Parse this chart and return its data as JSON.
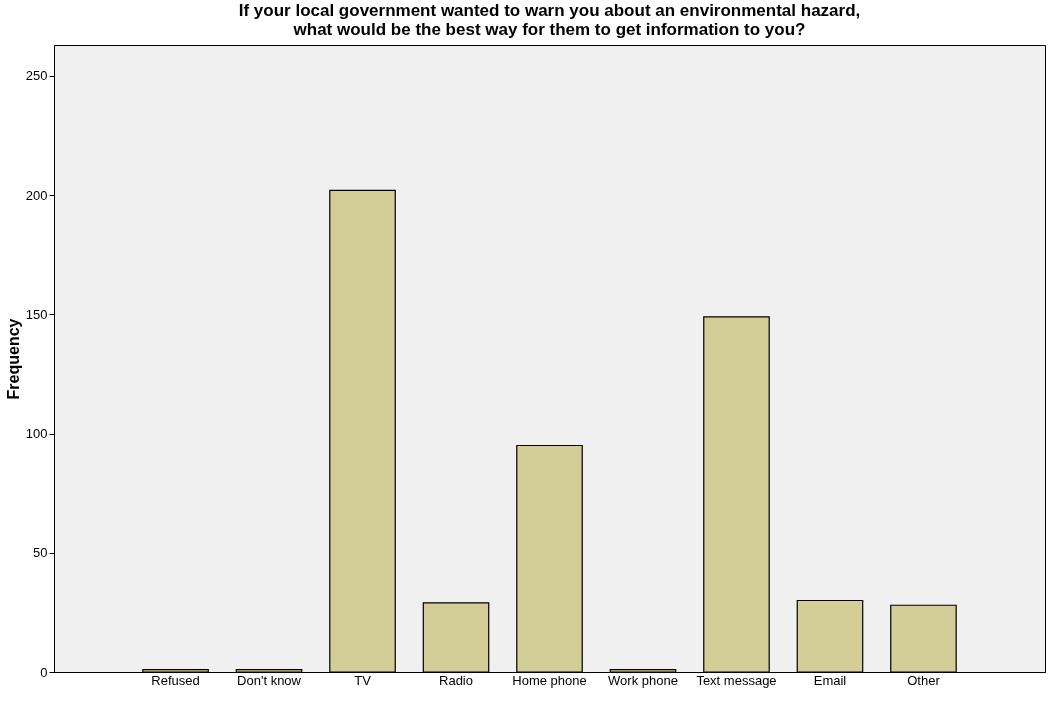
{
  "chart_data": {
    "type": "bar",
    "title": "If your local government wanted to warn you about an environmental hazard, what would be the best way for them to get information to you?",
    "ylabel": "Frequency",
    "categories": [
      "Refused",
      "Don't know",
      "TV",
      "Radio",
      "Home phone",
      "Work phone",
      "Text message",
      "Email",
      "Other"
    ],
    "values": [
      1,
      1,
      202,
      29,
      95,
      1,
      149,
      30,
      28
    ],
    "color": "#d3ce97",
    "ylim": [
      0,
      263
    ],
    "yticks": [
      0,
      50,
      100,
      150,
      200,
      250
    ],
    "grid": false
  }
}
